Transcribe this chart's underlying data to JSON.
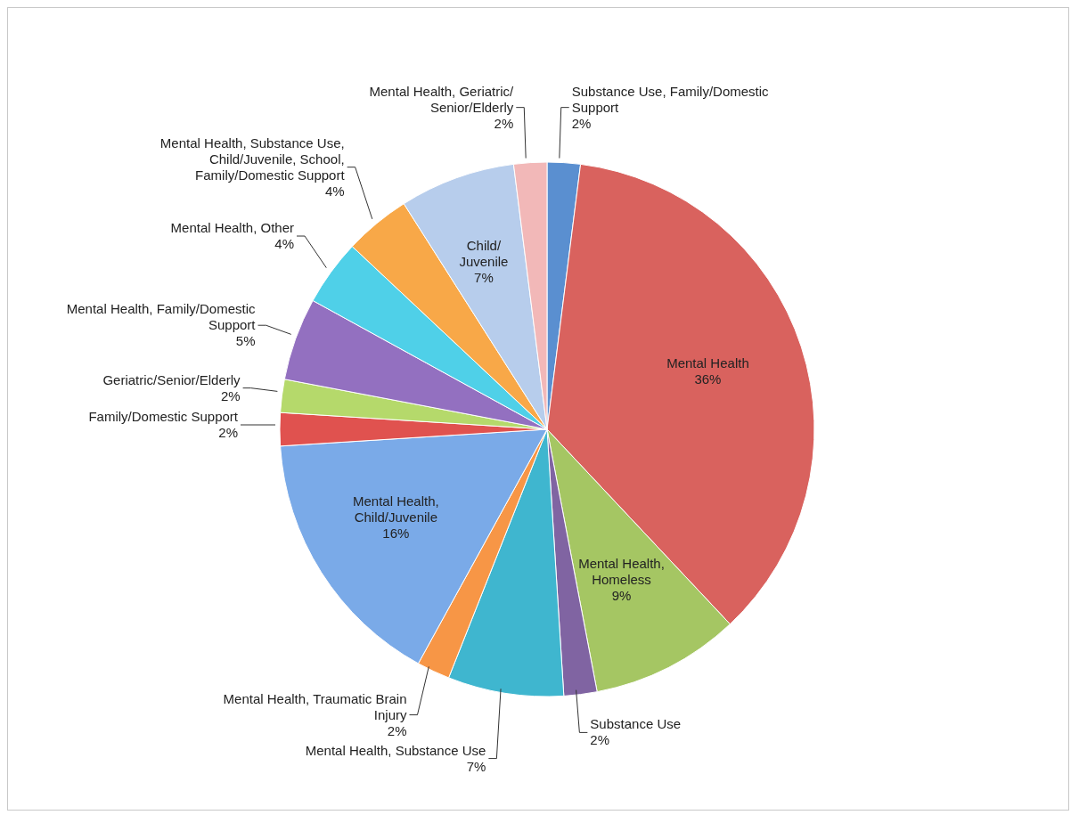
{
  "chart_data": {
    "type": "pie",
    "categories": [
      "Substance Use, Family/Domestic Support",
      "Mental Health",
      "Mental Health, Homeless",
      "Substance Use",
      "Mental Health, Substance Use",
      "Mental Health, Traumatic Brain Injury",
      "Mental Health, Child/Juvenile",
      "Family/Domestic Support",
      "Geriatric/Senior/Elderly",
      "Mental Health, Family/Domestic Support",
      "Mental Health, Other",
      "Mental Health, Substance Use, Child/Juvenile, School, Family/Domestic Support",
      "Child/Juvenile",
      "Mental Health, Geriatric/Senior/Elderly"
    ],
    "values": [
      2,
      36,
      9,
      2,
      7,
      2,
      16,
      2,
      2,
      5,
      4,
      4,
      7,
      2
    ],
    "value_labels": [
      "2%",
      "36%",
      "9%",
      "2%",
      "7%",
      "2%",
      "16%",
      "2%",
      "2%",
      "5%",
      "4%",
      "4%",
      "7%",
      "2%"
    ],
    "colors": [
      "#5a8fd0",
      "#d9625e",
      "#a5c663",
      "#8064a2",
      "#3fb6cf",
      "#f79646",
      "#7aaae8",
      "#e0524f",
      "#b5d96b",
      "#9370c0",
      "#4fd0e8",
      "#f8a848",
      "#b7cdec",
      "#f2b8b8"
    ]
  }
}
